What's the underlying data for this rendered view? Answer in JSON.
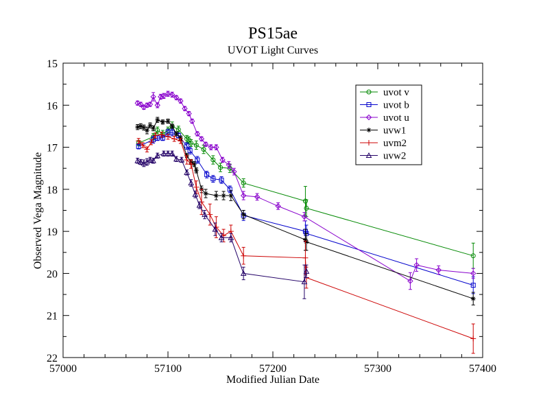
{
  "chart_data": {
    "type": "line",
    "title": "PS15ae",
    "subtitle": "UVOT Light Curves",
    "xlabel": "Modified Julian Date",
    "ylabel": "Observed Vega Magnitude",
    "xlim": [
      57000,
      57400
    ],
    "ylim": [
      15,
      22
    ],
    "y_inverted": true,
    "grid": false,
    "legend_position": "top-right",
    "x_ticks": [
      "57000",
      "57100",
      "57200",
      "57300",
      "57400"
    ],
    "y_ticks": [
      "15",
      "16",
      "17",
      "18",
      "19",
      "20",
      "21",
      "22"
    ],
    "series": [
      {
        "name": "uvot v",
        "color": "#008800",
        "marker": "circle",
        "points": [
          [
            57072,
            16.9,
            0.06
          ],
          [
            57086,
            16.75,
            0.08
          ],
          [
            57090,
            16.6,
            0.08
          ],
          [
            57095,
            16.68,
            0.08
          ],
          [
            57100,
            16.6,
            0.08
          ],
          [
            57104,
            16.5,
            0.1
          ],
          [
            57110,
            16.58,
            0.08
          ],
          [
            57118,
            16.8,
            0.08
          ],
          [
            57120,
            16.83,
            0.08
          ],
          [
            57122,
            16.9,
            0.08
          ],
          [
            57127,
            16.95,
            0.1
          ],
          [
            57134,
            17.05,
            0.1
          ],
          [
            57143,
            17.3,
            0.1
          ],
          [
            57150,
            17.48,
            0.1
          ],
          [
            57159,
            17.5,
            0.1
          ],
          [
            57172,
            17.85,
            0.1
          ],
          [
            57231,
            18.28,
            0.35
          ],
          [
            57232,
            18.45,
            0.2
          ],
          [
            57391,
            19.58,
            0.3
          ]
        ]
      },
      {
        "name": "uvot b",
        "color": "#0000cc",
        "marker": "square",
        "points": [
          [
            57072,
            16.98,
            0.06
          ],
          [
            57086,
            16.82,
            0.08
          ],
          [
            57090,
            16.78,
            0.06
          ],
          [
            57095,
            16.78,
            0.06
          ],
          [
            57100,
            16.65,
            0.08
          ],
          [
            57104,
            16.65,
            0.08
          ],
          [
            57110,
            16.72,
            0.06
          ],
          [
            57118,
            16.97,
            0.08
          ],
          [
            57121,
            17.08,
            0.08
          ],
          [
            57128,
            17.3,
            0.08
          ],
          [
            57137,
            17.65,
            0.08
          ],
          [
            57143,
            17.75,
            0.08
          ],
          [
            57151,
            17.78,
            0.08
          ],
          [
            57159,
            18.0,
            0.08
          ],
          [
            57172,
            18.62,
            0.12
          ],
          [
            57231,
            19.0,
            0.25
          ],
          [
            57232,
            19.05,
            0.2
          ],
          [
            57391,
            20.28,
            0.2
          ]
        ]
      },
      {
        "name": "uvot u",
        "color": "#8800cc",
        "marker": "diamond",
        "points": [
          [
            57071,
            15.95,
            0.05
          ],
          [
            57074,
            15.98,
            0.05
          ],
          [
            57077,
            16.05,
            0.05
          ],
          [
            57080,
            16.0,
            0.05
          ],
          [
            57083,
            15.98,
            0.05
          ],
          [
            57086,
            15.8,
            0.1
          ],
          [
            57090,
            16.0,
            0.06
          ],
          [
            57093,
            15.8,
            0.06
          ],
          [
            57096,
            15.78,
            0.06
          ],
          [
            57100,
            15.73,
            0.06
          ],
          [
            57104,
            15.75,
            0.06
          ],
          [
            57108,
            15.82,
            0.05
          ],
          [
            57112,
            15.9,
            0.05
          ],
          [
            57116,
            16.08,
            0.05
          ],
          [
            57120,
            16.2,
            0.05
          ],
          [
            57123,
            16.38,
            0.05
          ],
          [
            57128,
            16.68,
            0.05
          ],
          [
            57132,
            16.8,
            0.05
          ],
          [
            57136,
            16.93,
            0.05
          ],
          [
            57141,
            17.0,
            0.06
          ],
          [
            57146,
            17.0,
            0.06
          ],
          [
            57152,
            17.3,
            0.06
          ],
          [
            57158,
            17.42,
            0.08
          ],
          [
            57163,
            17.58,
            0.08
          ],
          [
            57172,
            18.15,
            0.1
          ],
          [
            57185,
            18.18,
            0.08
          ],
          [
            57205,
            18.4,
            0.08
          ],
          [
            57230,
            18.65,
            0.1
          ],
          [
            57331,
            20.18,
            0.2
          ],
          [
            57337,
            19.8,
            0.15
          ],
          [
            57358,
            19.92,
            0.1
          ],
          [
            57391,
            20.0,
            0.12
          ]
        ]
      },
      {
        "name": "uvw1",
        "color": "#000000",
        "marker": "star",
        "points": [
          [
            57071,
            16.52,
            0.06
          ],
          [
            57074,
            16.5,
            0.06
          ],
          [
            57077,
            16.53,
            0.06
          ],
          [
            57080,
            16.6,
            0.08
          ],
          [
            57083,
            16.48,
            0.06
          ],
          [
            57086,
            16.55,
            0.06
          ],
          [
            57090,
            16.35,
            0.06
          ],
          [
            57095,
            16.4,
            0.05
          ],
          [
            57100,
            16.38,
            0.05
          ],
          [
            57104,
            16.5,
            0.05
          ],
          [
            57108,
            16.68,
            0.05
          ],
          [
            57112,
            16.78,
            0.05
          ],
          [
            57118,
            17.2,
            0.05
          ],
          [
            57122,
            17.35,
            0.06
          ],
          [
            57125,
            17.4,
            0.06
          ],
          [
            57127,
            17.55,
            0.06
          ],
          [
            57132,
            18.0,
            0.08
          ],
          [
            57136,
            18.1,
            0.1
          ],
          [
            57146,
            18.15,
            0.1
          ],
          [
            57153,
            18.15,
            0.1
          ],
          [
            57160,
            18.15,
            0.12
          ],
          [
            57172,
            18.6,
            0.1
          ],
          [
            57231,
            19.2,
            0.25
          ],
          [
            57232,
            19.25,
            0.2
          ],
          [
            57391,
            20.6,
            0.15
          ]
        ]
      },
      {
        "name": "uvm2",
        "color": "#cc0000",
        "marker": "plus",
        "points": [
          [
            57072,
            16.85,
            0.06
          ],
          [
            57076,
            16.95,
            0.06
          ],
          [
            57080,
            17.05,
            0.06
          ],
          [
            57084,
            16.88,
            0.06
          ],
          [
            57088,
            16.72,
            0.06
          ],
          [
            57094,
            16.7,
            0.06
          ],
          [
            57100,
            16.75,
            0.06
          ],
          [
            57106,
            16.8,
            0.06
          ],
          [
            57112,
            16.85,
            0.06
          ],
          [
            57118,
            17.3,
            0.1
          ],
          [
            57122,
            17.4,
            0.1
          ],
          [
            57127,
            17.95,
            0.15
          ],
          [
            57132,
            18.3,
            0.3
          ],
          [
            57140,
            18.6,
            0.25
          ],
          [
            57146,
            18.9,
            0.25
          ],
          [
            57153,
            19.1,
            0.15
          ],
          [
            57160,
            19.0,
            0.15
          ],
          [
            57172,
            19.58,
            0.2
          ],
          [
            57231,
            19.63,
            0.4
          ],
          [
            57232,
            20.1,
            0.25
          ],
          [
            57391,
            21.55,
            0.35
          ]
        ]
      },
      {
        "name": "uvw2",
        "color": "#220066",
        "marker": "triangle",
        "points": [
          [
            57071,
            17.32,
            0.06
          ],
          [
            57074,
            17.35,
            0.06
          ],
          [
            57077,
            17.38,
            0.08
          ],
          [
            57080,
            17.35,
            0.08
          ],
          [
            57083,
            17.3,
            0.06
          ],
          [
            57086,
            17.32,
            0.06
          ],
          [
            57090,
            17.2,
            0.06
          ],
          [
            57096,
            17.15,
            0.06
          ],
          [
            57100,
            17.15,
            0.06
          ],
          [
            57104,
            17.15,
            0.06
          ],
          [
            57108,
            17.28,
            0.06
          ],
          [
            57113,
            17.3,
            0.06
          ],
          [
            57118,
            17.6,
            0.06
          ],
          [
            57122,
            17.85,
            0.08
          ],
          [
            57126,
            18.12,
            0.08
          ],
          [
            57130,
            18.38,
            0.08
          ],
          [
            57135,
            18.6,
            0.1
          ],
          [
            57145,
            18.95,
            0.15
          ],
          [
            57151,
            19.15,
            0.1
          ],
          [
            57160,
            19.15,
            0.1
          ],
          [
            57172,
            20.0,
            0.15
          ],
          [
            57230,
            20.2,
            0.4
          ],
          [
            57232,
            19.95,
            0.15
          ]
        ]
      }
    ]
  }
}
